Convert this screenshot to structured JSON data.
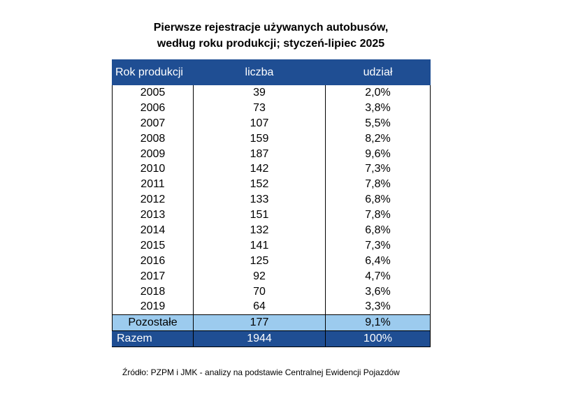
{
  "title": {
    "line1": "Pierwsze rejestracje używanych autobusów,",
    "line2": "według roku produkcji; styczeń-lipiec  2025"
  },
  "table": {
    "headers": [
      "Rok produkcji",
      "liczba",
      "udział"
    ],
    "rows": [
      {
        "year": "2005",
        "count": "39",
        "share": "2,0%"
      },
      {
        "year": "2006",
        "count": "73",
        "share": "3,8%"
      },
      {
        "year": "2007",
        "count": "107",
        "share": "5,5%"
      },
      {
        "year": "2008",
        "count": "159",
        "share": "8,2%"
      },
      {
        "year": "2009",
        "count": "187",
        "share": "9,6%"
      },
      {
        "year": "2010",
        "count": "142",
        "share": "7,3%"
      },
      {
        "year": "2011",
        "count": "152",
        "share": "7,8%"
      },
      {
        "year": "2012",
        "count": "133",
        "share": "6,8%"
      },
      {
        "year": "2013",
        "count": "151",
        "share": "7,8%"
      },
      {
        "year": "2014",
        "count": "132",
        "share": "6,8%"
      },
      {
        "year": "2015",
        "count": "141",
        "share": "7,3%"
      },
      {
        "year": "2016",
        "count": "125",
        "share": "6,4%"
      },
      {
        "year": "2017",
        "count": "92",
        "share": "4,7%"
      },
      {
        "year": "2018",
        "count": "70",
        "share": "3,6%"
      },
      {
        "year": "2019",
        "count": "64",
        "share": "3,3%"
      }
    ],
    "other": {
      "year": "Pozostałe",
      "count": "177",
      "share": "9,1%"
    },
    "total": {
      "year": "Razem",
      "count": "1944",
      "share": "100%"
    }
  },
  "source": "Źródło: PZPM i JMK - analizy na podstawie Centralnej Ewidencji Pojazdów",
  "colors": {
    "header_bg": "#1f4e93",
    "other_row_bg": "#9ccbee"
  }
}
